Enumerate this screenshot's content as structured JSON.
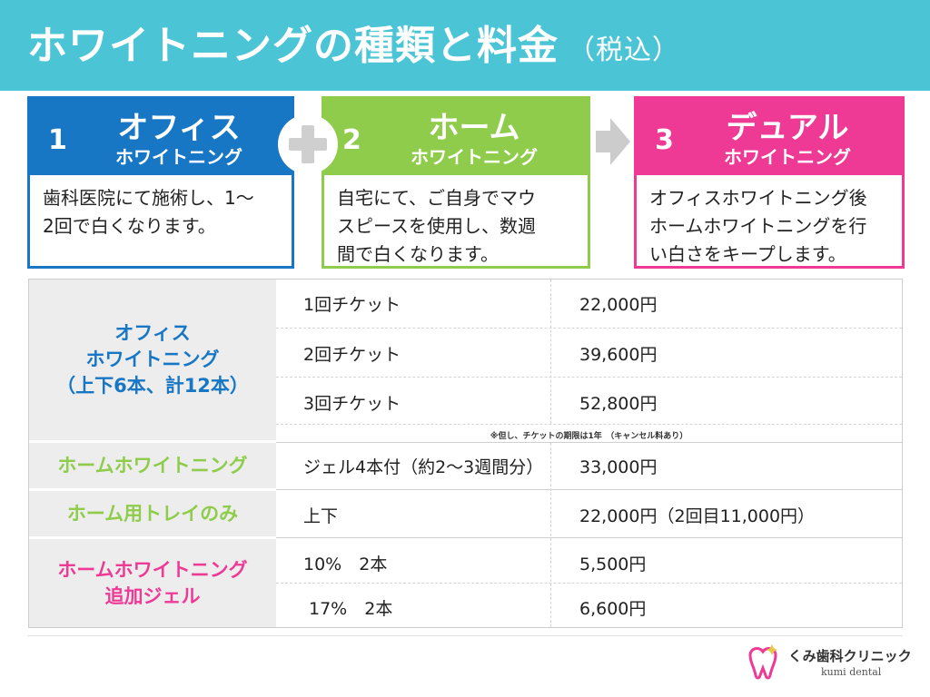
{
  "header": {
    "title": "ホワイトニングの種類と料金",
    "subtitle": "（税込）"
  },
  "cards": [
    {
      "number": "1",
      "title": "オフィス",
      "subtitle": "ホワイトニング",
      "desc_lines": [
        "歯科医院にて施術し、1～",
        "2回で白くなります。"
      ]
    },
    {
      "number": "2",
      "title": "ホーム",
      "subtitle": "ホワイトニング",
      "desc_lines": [
        "自宅にて、ご自身でマウ",
        "スピースを使用し、数週",
        "間で白くなります。"
      ]
    },
    {
      "number": "3",
      "title": "デュアル",
      "subtitle": "ホワイトニング",
      "desc_lines": [
        "オフィスホワイトニング後",
        "ホームホワイトニングを行",
        "い白さをキープします。"
      ]
    }
  ],
  "icons": {
    "plus": "plus-icon",
    "arrow": "arrow-right-icon",
    "logo": "tooth-logo-icon"
  },
  "colors": {
    "header": "#4bc5d6",
    "office": "#1877c4",
    "home": "#8fcc4b",
    "dual": "#ee3a95"
  },
  "price_table": {
    "office": {
      "category_lines": [
        "オフィス",
        "ホワイトニング",
        "（上下6本、計12本）"
      ],
      "rows": [
        {
          "item": "1回チケット",
          "price": "22,000円"
        },
        {
          "item": "2回チケット",
          "price": "39,600円"
        },
        {
          "item": "3回チケット",
          "price": "52,800円"
        }
      ],
      "note": "※但し、チケットの期限は1年　（キャンセル料あり）"
    },
    "home": {
      "category": "ホームホワイトニング",
      "item": "ジェル4本付（約2～3週間分）",
      "price": "33,000円"
    },
    "tray": {
      "category": "ホーム用トレイのみ",
      "item": "上下",
      "price": "22,000円（2回目11,000円）"
    },
    "gel": {
      "category_lines": [
        "ホームホワイトニング",
        "追加ジェル"
      ],
      "rows": [
        {
          "item": "10%　2本",
          "price": "5,500円"
        },
        {
          "item": "17%　2本",
          "price": "6,600円"
        }
      ]
    }
  },
  "footer": {
    "clinic_name": "くみ歯科クリニック",
    "clinic_name_en": "kumi dental"
  }
}
